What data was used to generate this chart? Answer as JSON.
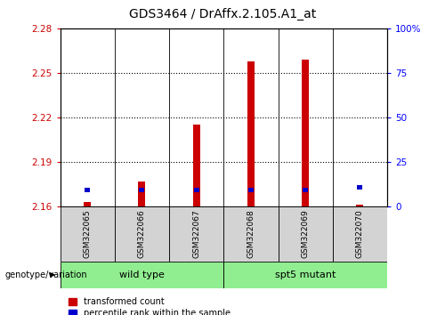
{
  "title": "GDS3464 / DrAffx.2.105.A1_at",
  "samples": [
    "GSM322065",
    "GSM322066",
    "GSM322067",
    "GSM322068",
    "GSM322069",
    "GSM322070"
  ],
  "red_values": [
    2.163,
    2.177,
    2.215,
    2.258,
    2.259,
    2.161
  ],
  "blue_values": [
    2.1695,
    2.1695,
    2.1695,
    2.1695,
    2.1695,
    2.1715
  ],
  "ylim_left": [
    2.16,
    2.28
  ],
  "yticks_left": [
    2.16,
    2.19,
    2.22,
    2.25,
    2.28
  ],
  "yticks_right": [
    0,
    25,
    50,
    75,
    100
  ],
  "red_color": "#cc0000",
  "blue_color": "#0000cc",
  "group_bg": "#90ee90",
  "sample_bg": "#d3d3d3",
  "legend_red": "transformed count",
  "legend_blue": "percentile rank within the sample",
  "genotype_label": "genotype/variation",
  "wild_type_label": "wild type",
  "spt5_label": "spt5 mutant"
}
